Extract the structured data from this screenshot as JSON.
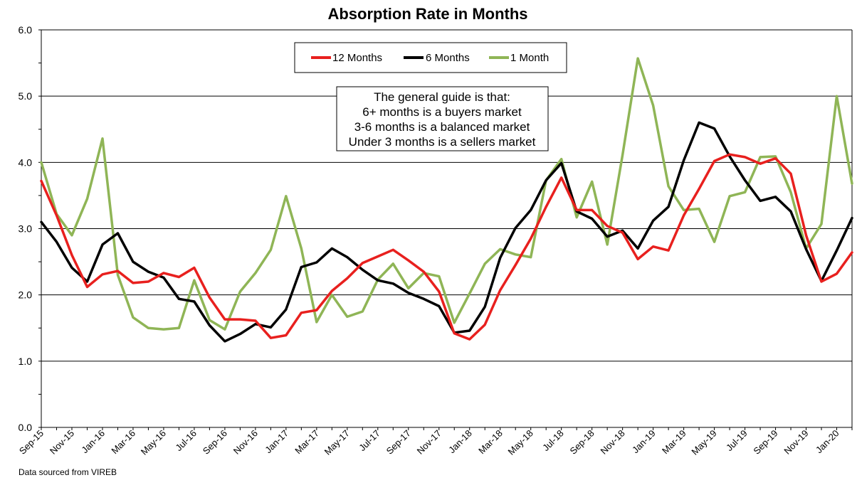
{
  "chart_data": {
    "type": "line",
    "title": "Absorption Rate in Months",
    "xlabel": "",
    "ylabel": "",
    "ylim": [
      0,
      6
    ],
    "yticks": [
      "0.0",
      "1.0",
      "2.0",
      "3.0",
      "4.0",
      "5.0",
      "6.0"
    ],
    "grid": true,
    "legend_placement": "top-center",
    "categories": [
      "Sep-15",
      "Oct-15",
      "Nov-15",
      "Dec-15",
      "Jan-16",
      "Feb-16",
      "Mar-16",
      "Apr-16",
      "May-16",
      "Jun-16",
      "Jul-16",
      "Aug-16",
      "Sep-16",
      "Oct-16",
      "Nov-16",
      "Dec-16",
      "Jan-17",
      "Feb-17",
      "Mar-17",
      "Apr-17",
      "May-17",
      "Jun-17",
      "Jul-17",
      "Aug-17",
      "Sep-17",
      "Oct-17",
      "Nov-17",
      "Dec-17",
      "Jan-18",
      "Feb-18",
      "Mar-18",
      "Apr-18",
      "May-18",
      "Jun-18",
      "Jul-18",
      "Aug-18",
      "Sep-18",
      "Oct-18",
      "Nov-18",
      "Dec-18",
      "Jan-19",
      "Feb-19",
      "Mar-19",
      "Apr-19",
      "May-19",
      "Jun-19",
      "Jul-19",
      "Aug-19",
      "Sep-19",
      "Oct-19",
      "Nov-19",
      "Dec-19",
      "Jan-20",
      "Feb-20"
    ],
    "tick_labels": [
      "Sep-15",
      "Nov-15",
      "Jan-16",
      "Mar-16",
      "May-16",
      "Jul-16",
      "Sep-16",
      "Nov-16",
      "Jan-17",
      "Mar-17",
      "May-17",
      "Jul-17",
      "Sep-17",
      "Nov-17",
      "Jan-18",
      "Mar-18",
      "May-18",
      "Jul-18",
      "Sep-18",
      "Nov-18",
      "Jan-19",
      "Mar-19",
      "May-19",
      "Jul-19",
      "Sep-19",
      "Nov-19",
      "Jan-20"
    ],
    "series": [
      {
        "name": "12 Months",
        "color": "#e8201e",
        "values": [
          3.72,
          3.2,
          2.6,
          2.12,
          2.31,
          2.36,
          2.18,
          2.2,
          2.33,
          2.27,
          2.41,
          1.96,
          1.63,
          1.63,
          1.61,
          1.35,
          1.39,
          1.73,
          1.77,
          2.06,
          2.25,
          2.48,
          2.58,
          2.68,
          2.52,
          2.35,
          2.05,
          1.42,
          1.33,
          1.55,
          2.07,
          2.45,
          2.85,
          3.33,
          3.77,
          3.28,
          3.28,
          3.04,
          2.94,
          2.54,
          2.73,
          2.67,
          3.2,
          3.6,
          4.02,
          4.12,
          4.08,
          3.98,
          4.06,
          3.83,
          2.9,
          2.2,
          2.32,
          2.64
        ]
      },
      {
        "name": "6 Months",
        "color": "#000000",
        "values": [
          3.1,
          2.8,
          2.41,
          2.2,
          2.76,
          2.93,
          2.5,
          2.35,
          2.26,
          1.94,
          1.9,
          1.54,
          1.3,
          1.41,
          1.56,
          1.51,
          1.78,
          2.42,
          2.49,
          2.7,
          2.57,
          2.38,
          2.22,
          2.17,
          2.03,
          1.94,
          1.83,
          1.43,
          1.46,
          1.82,
          2.56,
          3.01,
          3.28,
          3.73,
          3.99,
          3.26,
          3.15,
          2.88,
          2.97,
          2.7,
          3.12,
          3.33,
          4.03,
          4.6,
          4.51,
          4.09,
          3.73,
          3.42,
          3.48,
          3.26,
          2.69,
          2.21,
          2.67,
          3.16
        ]
      },
      {
        "name": "1 Month",
        "color": "#8fb556",
        "values": [
          4.0,
          3.22,
          2.9,
          3.45,
          4.36,
          2.3,
          1.66,
          1.5,
          1.48,
          1.5,
          2.22,
          1.62,
          1.48,
          2.05,
          2.33,
          2.68,
          3.49,
          2.7,
          1.59,
          2.0,
          1.67,
          1.75,
          2.23,
          2.47,
          2.1,
          2.33,
          2.28,
          1.58,
          2.02,
          2.47,
          2.69,
          2.61,
          2.57,
          3.73,
          4.05,
          3.17,
          3.71,
          2.76,
          4.11,
          5.57,
          4.86,
          3.64,
          3.28,
          3.3,
          2.8,
          3.49,
          3.55,
          4.08,
          4.09,
          3.55,
          2.7,
          3.07,
          5.0,
          3.68
        ]
      }
    ],
    "annotation": {
      "lines": [
        "The general guide is that:",
        "6+ months is a buyers market",
        "3-6 months is a balanced market",
        "Under 3 months is a sellers market"
      ]
    },
    "source_note": "Data sourced from VIREB"
  }
}
